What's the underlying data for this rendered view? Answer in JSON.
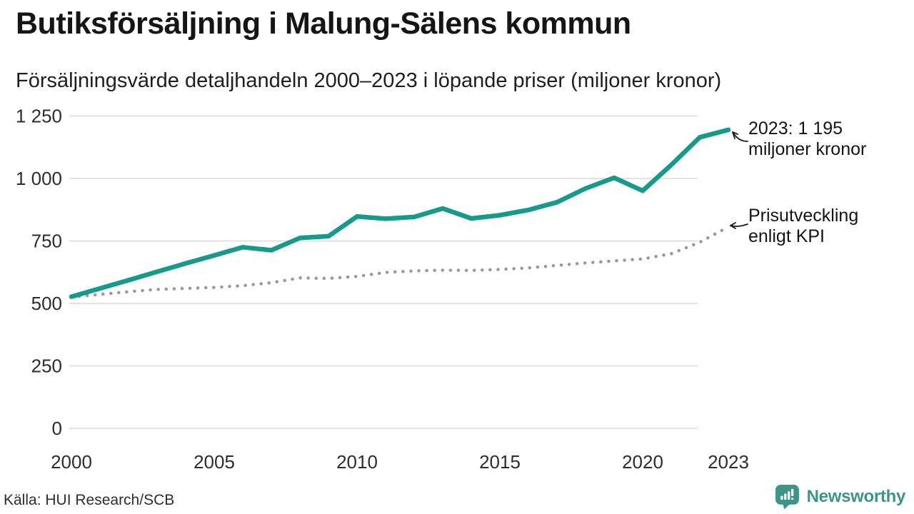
{
  "header": {
    "title": "Butiksförsäljning i Malung-Sälens kommun",
    "subtitle": "Försäljningsvärde detaljhandeln 2000–2023 i löpande priser (miljoner kronor)"
  },
  "chart_data": {
    "type": "line",
    "x": [
      2000,
      2001,
      2002,
      2003,
      2004,
      2005,
      2006,
      2007,
      2008,
      2009,
      2010,
      2011,
      2012,
      2013,
      2014,
      2015,
      2016,
      2017,
      2018,
      2019,
      2020,
      2021,
      2022,
      2023
    ],
    "series": [
      {
        "id": "kpi",
        "name": "Prisutveckling enligt KPI",
        "style": "dotted",
        "color": "#999999",
        "values": [
          525,
          536,
          547,
          556,
          560,
          564,
          571,
          583,
          602,
          600,
          608,
          624,
          630,
          633,
          632,
          636,
          642,
          652,
          662,
          670,
          678,
          699,
          745,
          806
        ]
      },
      {
        "id": "retail",
        "name": "Försäljningsvärde detaljhandeln",
        "style": "solid",
        "color": "#169a8c",
        "values": [
          527,
          560,
          593,
          627,
          660,
          692,
          725,
          713,
          762,
          769,
          848,
          839,
          846,
          880,
          840,
          853,
          874,
          905,
          960,
          1003,
          951,
          1054,
          1165,
          1195
        ]
      }
    ],
    "ylim": [
      0,
      1250
    ],
    "grid": "horizontal",
    "legend": "annotated-arrows",
    "yticks": [
      {
        "value": 0,
        "label": "0"
      },
      {
        "value": 250,
        "label": "250"
      },
      {
        "value": 500,
        "label": "500"
      },
      {
        "value": 750,
        "label": "750"
      },
      {
        "value": 1000,
        "label": "1 000"
      },
      {
        "value": 1250,
        "label": "1 250"
      }
    ],
    "xticks": [
      {
        "year": 2000,
        "label": "2000"
      },
      {
        "year": 2005,
        "label": "2005"
      },
      {
        "year": 2010,
        "label": "2010"
      },
      {
        "year": 2015,
        "label": "2015"
      },
      {
        "year": 2020,
        "label": "2020"
      },
      {
        "year": 2023,
        "label": "2023"
      }
    ],
    "annotations": [
      {
        "line1": "2023: 1 195",
        "line2": "miljoner kronor"
      },
      {
        "line1": "Prisutveckling",
        "line2": "enligt KPI"
      }
    ]
  },
  "source": {
    "text": "Källa: HUI Research/SCB"
  },
  "logo": {
    "text": "Newsworthy",
    "color": "#3e9489"
  }
}
